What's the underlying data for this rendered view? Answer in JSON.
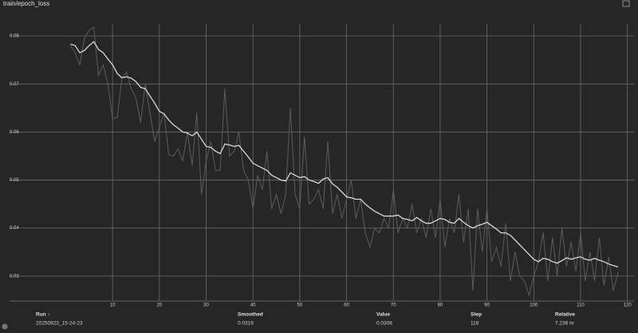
{
  "chart_data": {
    "type": "line",
    "title": "train/epoch_loss",
    "x": [
      1,
      2,
      3,
      4,
      5,
      6,
      7,
      8,
      9,
      10,
      11,
      12,
      13,
      14,
      15,
      16,
      17,
      18,
      19,
      20,
      21,
      22,
      23,
      24,
      25,
      26,
      27,
      28,
      29,
      30,
      31,
      32,
      33,
      34,
      35,
      36,
      37,
      38,
      39,
      40,
      41,
      42,
      43,
      44,
      45,
      46,
      47,
      48,
      49,
      50,
      51,
      52,
      53,
      54,
      55,
      56,
      57,
      58,
      59,
      60,
      61,
      62,
      63,
      64,
      65,
      66,
      67,
      68,
      69,
      70,
      71,
      72,
      73,
      74,
      75,
      76,
      77,
      78,
      79,
      80,
      81,
      82,
      83,
      84,
      85,
      86,
      87,
      88,
      89,
      90,
      91,
      92,
      93,
      94,
      95,
      96,
      97,
      98,
      99,
      100,
      101,
      102,
      103,
      104,
      105,
      106,
      107,
      108,
      109,
      110,
      111,
      112,
      113,
      114,
      115,
      116,
      117,
      118
    ],
    "series": [
      {
        "color": "#5c5c5c",
        "values": [
          0.078,
          0.0765,
          0.074,
          0.0795,
          0.0812,
          0.0818,
          0.0718,
          0.074,
          0.07,
          0.0628,
          0.063,
          0.0712,
          0.0725,
          0.069,
          0.067,
          0.062,
          0.07,
          0.064,
          0.058,
          0.061,
          0.064,
          0.0553,
          0.055,
          0.0565,
          0.054,
          0.06,
          0.053,
          0.064,
          0.047,
          0.054,
          0.058,
          0.052,
          0.052,
          0.069,
          0.055,
          0.056,
          0.06,
          0.052,
          0.05,
          0.044,
          0.051,
          0.048,
          0.056,
          0.044,
          0.047,
          0.043,
          0.047,
          0.065,
          0.047,
          0.044,
          0.059,
          0.045,
          0.046,
          0.048,
          0.044,
          0.058,
          0.043,
          0.047,
          0.042,
          0.046,
          0.05,
          0.042,
          0.046,
          0.039,
          0.036,
          0.04,
          0.039,
          0.042,
          0.04,
          0.048,
          0.039,
          0.042,
          0.04,
          0.045,
          0.039,
          0.042,
          0.038,
          0.044,
          0.038,
          0.046,
          0.036,
          0.042,
          0.039,
          0.047,
          0.037,
          0.044,
          0.027,
          0.044,
          0.035,
          0.044,
          0.033,
          0.036,
          0.032,
          0.041,
          0.029,
          0.035,
          0.03,
          0.029,
          0.026,
          0.03,
          0.033,
          0.039,
          0.029,
          0.038,
          0.03,
          0.04,
          0.032,
          0.037,
          0.031,
          0.039,
          0.029,
          0.035,
          0.029,
          0.038,
          0.028,
          0.034,
          0.027,
          0.0308
        ]
      },
      {
        "color": "#d8d8d8",
        "values": [
          0.0783,
          0.078,
          0.0765,
          0.077,
          0.078,
          0.0788,
          0.0772,
          0.0765,
          0.0752,
          0.074,
          0.0722,
          0.0713,
          0.0715,
          0.0712,
          0.0705,
          0.0693,
          0.069,
          0.0675,
          0.066,
          0.0643,
          0.0638,
          0.0625,
          0.0615,
          0.0608,
          0.06,
          0.0598,
          0.0592,
          0.06,
          0.0585,
          0.057,
          0.0568,
          0.056,
          0.0555,
          0.0575,
          0.0573,
          0.057,
          0.0572,
          0.056,
          0.0548,
          0.0535,
          0.053,
          0.0525,
          0.052,
          0.051,
          0.0505,
          0.05,
          0.0498,
          0.0515,
          0.051,
          0.0505,
          0.0507,
          0.05,
          0.0497,
          0.0493,
          0.0502,
          0.0505,
          0.0492,
          0.0485,
          0.0475,
          0.0465,
          0.0463,
          0.046,
          0.046,
          0.045,
          0.0442,
          0.0435,
          0.043,
          0.0425,
          0.0425,
          0.0425,
          0.0427,
          0.042,
          0.0418,
          0.0415,
          0.0422,
          0.0415,
          0.041,
          0.041,
          0.0415,
          0.042,
          0.0418,
          0.0412,
          0.041,
          0.042,
          0.0412,
          0.0405,
          0.04,
          0.0405,
          0.0408,
          0.0412,
          0.0405,
          0.0398,
          0.039,
          0.039,
          0.0385,
          0.0375,
          0.0365,
          0.0355,
          0.0345,
          0.0335,
          0.033,
          0.0337,
          0.0335,
          0.033,
          0.0327,
          0.0332,
          0.0338,
          0.0335,
          0.0338,
          0.034,
          0.0335,
          0.0333,
          0.0337,
          0.0333,
          0.033,
          0.0325,
          0.0322,
          0.0319
        ]
      }
    ],
    "xlim": [
      -12,
      121.5
    ],
    "xticks": [
      10,
      20,
      30,
      40,
      50,
      60,
      70,
      80,
      90,
      100,
      110,
      120
    ],
    "ylim": [
      0.0248,
      0.0825
    ],
    "yticks": [
      0.03,
      0.04,
      0.05,
      0.06,
      0.07,
      0.08
    ],
    "grid": true
  },
  "table": {
    "headers": [
      "Run ↑",
      "Smoothed",
      "Value",
      "Step",
      "Relative"
    ],
    "row": [
      "20250823_15-24-23",
      "0.0319",
      "0.0308",
      "118",
      "7.236 hr"
    ]
  }
}
